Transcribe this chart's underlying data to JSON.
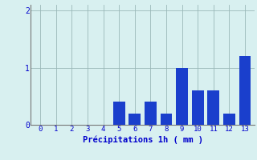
{
  "categories": [
    0,
    1,
    2,
    3,
    4,
    5,
    6,
    7,
    8,
    9,
    10,
    11,
    12,
    13
  ],
  "values": [
    0,
    0,
    0,
    0,
    0,
    0.4,
    0.2,
    0.4,
    0.2,
    1.0,
    0.6,
    0.6,
    0.2,
    1.2
  ],
  "bar_color": "#1a3fcc",
  "background_color": "#d8f0f0",
  "grid_color": "#9ab8b8",
  "xlabel": "Précipitations 1h ( mm )",
  "xlabel_color": "#0000cc",
  "tick_color": "#0000cc",
  "ylim": [
    0,
    2.1
  ],
  "yticks": [
    0,
    1,
    2
  ],
  "xlim": [
    -0.6,
    13.6
  ]
}
